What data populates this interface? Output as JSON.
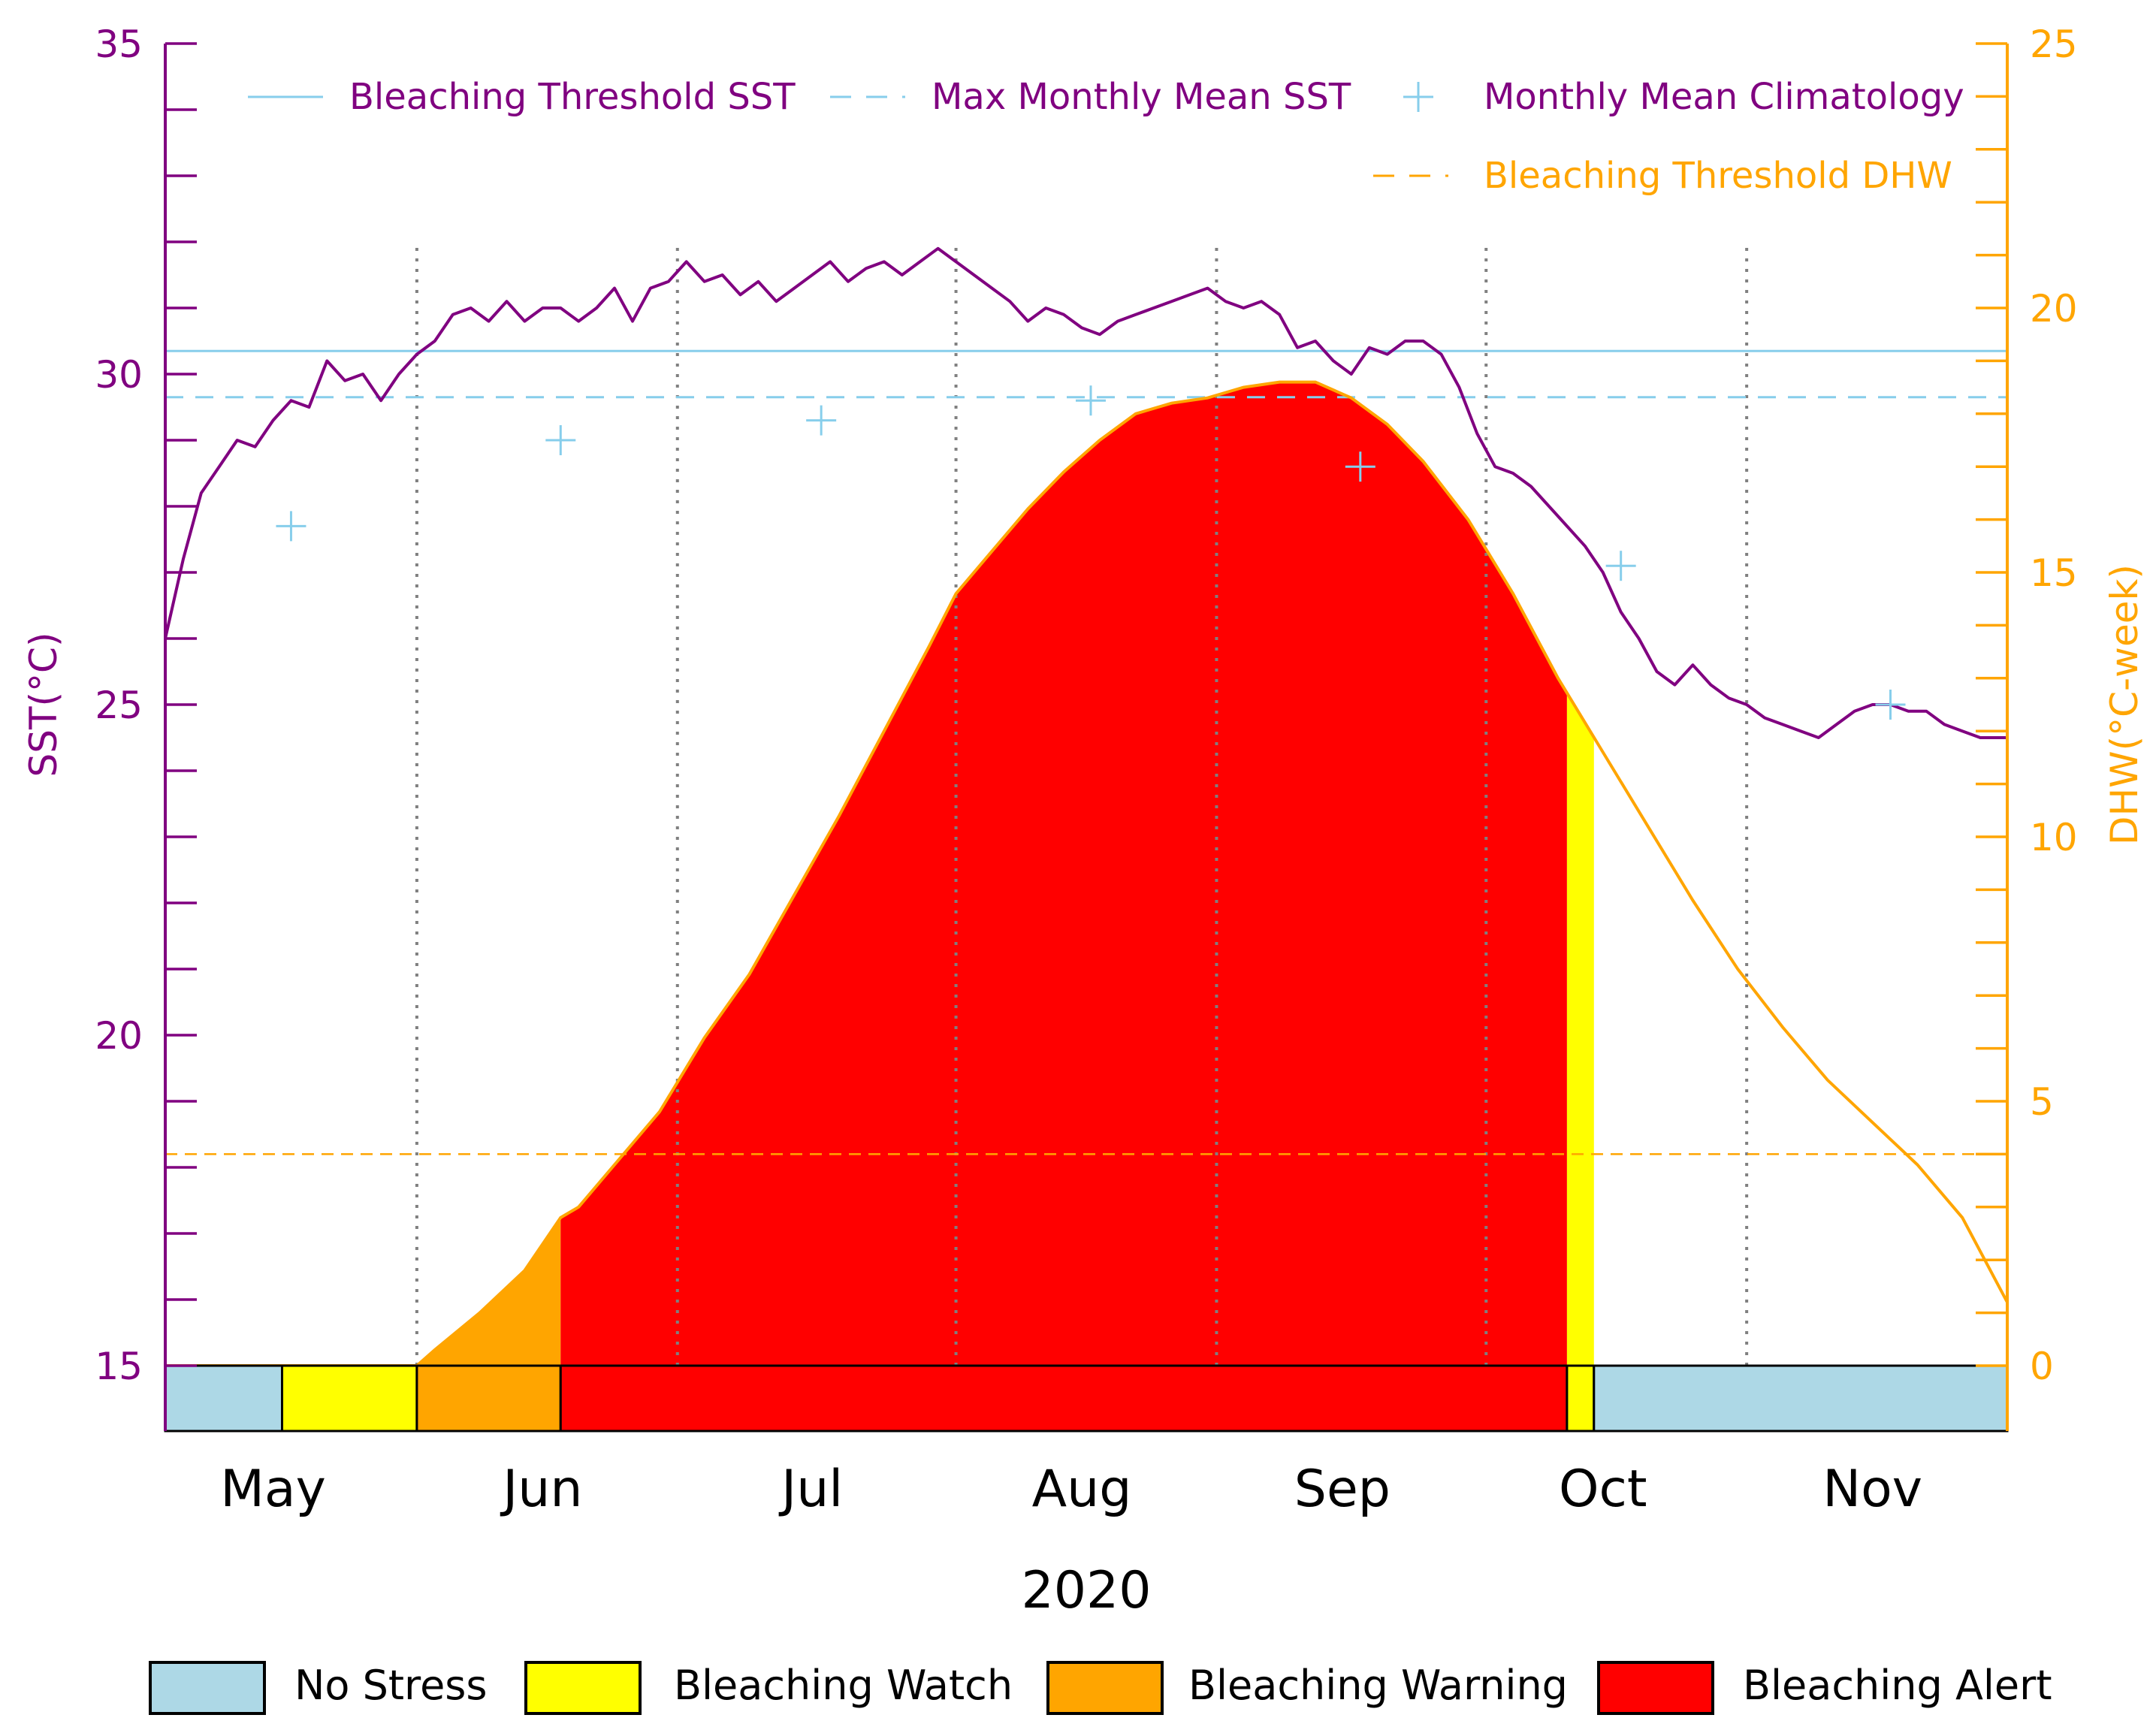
{
  "chart_data": {
    "type": "line",
    "title": "",
    "xlabel": "2020",
    "ylabel_left": "SST(°C)",
    "ylabel_right": "DHW(°C-week)",
    "ylim_left": [
      15,
      35
    ],
    "ylim_right": [
      0,
      25
    ],
    "y_left_ticks": [
      "15",
      "20",
      "25",
      "30",
      "35"
    ],
    "y_right_ticks": [
      "0",
      "5",
      "10",
      "15",
      "20",
      "25"
    ],
    "x_domain_days": [
      0,
      205
    ],
    "month_labels": [
      {
        "label": "May",
        "day": 12
      },
      {
        "label": "Jun",
        "day": 42
      },
      {
        "label": "Jul",
        "day": 72
      },
      {
        "label": "Aug",
        "day": 102
      },
      {
        "label": "Sep",
        "day": 131
      },
      {
        "label": "Oct",
        "day": 160
      },
      {
        "label": "Nov",
        "day": 190
      }
    ],
    "vertical_gridlines_days": [
      28,
      57,
      88,
      117,
      147,
      176,
      206
    ],
    "bleaching_threshold_sst": 30.35,
    "max_monthly_mean_sst": 29.65,
    "bleaching_threshold_dhw": 4.0,
    "sst_series": {
      "name": "SST",
      "points": [
        [
          0,
          26.0
        ],
        [
          2,
          27.2
        ],
        [
          4,
          28.2
        ],
        [
          6,
          28.6
        ],
        [
          8,
          29.0
        ],
        [
          10,
          28.9
        ],
        [
          12,
          29.3
        ],
        [
          14,
          29.6
        ],
        [
          16,
          29.5
        ],
        [
          18,
          30.2
        ],
        [
          20,
          29.9
        ],
        [
          22,
          30.0
        ],
        [
          24,
          29.6
        ],
        [
          26,
          30.0
        ],
        [
          28,
          30.3
        ],
        [
          30,
          30.5
        ],
        [
          32,
          30.9
        ],
        [
          34,
          31.0
        ],
        [
          36,
          30.8
        ],
        [
          38,
          31.1
        ],
        [
          40,
          30.8
        ],
        [
          42,
          31.0
        ],
        [
          44,
          31.0
        ],
        [
          46,
          30.8
        ],
        [
          48,
          31.0
        ],
        [
          50,
          31.3
        ],
        [
          52,
          30.8
        ],
        [
          54,
          31.3
        ],
        [
          56,
          31.4
        ],
        [
          58,
          31.7
        ],
        [
          60,
          31.4
        ],
        [
          62,
          31.5
        ],
        [
          64,
          31.2
        ],
        [
          66,
          31.4
        ],
        [
          68,
          31.1
        ],
        [
          70,
          31.3
        ],
        [
          72,
          31.5
        ],
        [
          74,
          31.7
        ],
        [
          76,
          31.4
        ],
        [
          78,
          31.6
        ],
        [
          80,
          31.7
        ],
        [
          82,
          31.5
        ],
        [
          84,
          31.7
        ],
        [
          86,
          31.9
        ],
        [
          88,
          31.7
        ],
        [
          90,
          31.5
        ],
        [
          92,
          31.3
        ],
        [
          94,
          31.1
        ],
        [
          96,
          30.8
        ],
        [
          98,
          31.0
        ],
        [
          100,
          30.9
        ],
        [
          102,
          30.7
        ],
        [
          104,
          30.6
        ],
        [
          106,
          30.8
        ],
        [
          108,
          30.9
        ],
        [
          110,
          31.0
        ],
        [
          112,
          31.1
        ],
        [
          114,
          31.2
        ],
        [
          116,
          31.3
        ],
        [
          118,
          31.1
        ],
        [
          120,
          31.0
        ],
        [
          122,
          31.1
        ],
        [
          124,
          30.9
        ],
        [
          126,
          30.4
        ],
        [
          128,
          30.5
        ],
        [
          130,
          30.2
        ],
        [
          132,
          30.0
        ],
        [
          134,
          30.4
        ],
        [
          136,
          30.3
        ],
        [
          138,
          30.5
        ],
        [
          140,
          30.5
        ],
        [
          142,
          30.3
        ],
        [
          144,
          29.8
        ],
        [
          146,
          29.1
        ],
        [
          148,
          28.6
        ],
        [
          150,
          28.5
        ],
        [
          152,
          28.3
        ],
        [
          154,
          28.0
        ],
        [
          156,
          27.7
        ],
        [
          158,
          27.4
        ],
        [
          160,
          27.0
        ],
        [
          162,
          26.4
        ],
        [
          164,
          26.0
        ],
        [
          166,
          25.5
        ],
        [
          168,
          25.3
        ],
        [
          170,
          25.6
        ],
        [
          172,
          25.3
        ],
        [
          174,
          25.1
        ],
        [
          176,
          25.0
        ],
        [
          178,
          24.8
        ],
        [
          180,
          24.7
        ],
        [
          182,
          24.6
        ],
        [
          184,
          24.5
        ],
        [
          186,
          24.7
        ],
        [
          188,
          24.9
        ],
        [
          190,
          25.0
        ],
        [
          192,
          25.0
        ],
        [
          194,
          24.9
        ],
        [
          196,
          24.9
        ],
        [
          198,
          24.7
        ],
        [
          200,
          24.6
        ],
        [
          202,
          24.5
        ],
        [
          205,
          24.5
        ]
      ]
    },
    "dhw_series": {
      "name": "DHW",
      "points": [
        [
          0,
          0
        ],
        [
          28,
          0
        ],
        [
          30,
          0.3
        ],
        [
          35,
          1.0
        ],
        [
          40,
          1.8
        ],
        [
          44,
          2.8
        ],
        [
          46,
          3.0
        ],
        [
          50,
          3.8
        ],
        [
          55,
          4.8
        ],
        [
          60,
          6.2
        ],
        [
          65,
          7.4
        ],
        [
          70,
          8.9
        ],
        [
          75,
          10.4
        ],
        [
          80,
          12.0
        ],
        [
          85,
          13.6
        ],
        [
          88,
          14.6
        ],
        [
          92,
          15.4
        ],
        [
          96,
          16.2
        ],
        [
          100,
          16.9
        ],
        [
          104,
          17.5
        ],
        [
          108,
          18.0
        ],
        [
          112,
          18.2
        ],
        [
          116,
          18.3
        ],
        [
          120,
          18.5
        ],
        [
          124,
          18.6
        ],
        [
          128,
          18.6
        ],
        [
          132,
          18.3
        ],
        [
          136,
          17.8
        ],
        [
          140,
          17.1
        ],
        [
          145,
          16.0
        ],
        [
          150,
          14.6
        ],
        [
          155,
          13.0
        ],
        [
          160,
          11.6
        ],
        [
          165,
          10.2
        ],
        [
          170,
          8.8
        ],
        [
          175,
          7.5
        ],
        [
          180,
          6.4
        ],
        [
          185,
          5.4
        ],
        [
          190,
          4.6
        ],
        [
          195,
          3.8
        ],
        [
          200,
          2.8
        ],
        [
          205,
          1.2
        ]
      ]
    },
    "climatology_points": [
      [
        14,
        27.7
      ],
      [
        44,
        29.0
      ],
      [
        73,
        29.3
      ],
      [
        103,
        29.6
      ],
      [
        133,
        28.6
      ],
      [
        162,
        27.1
      ],
      [
        192,
        25.0
      ]
    ],
    "stress_periods": [
      {
        "level": "No Stress",
        "from": 0,
        "to": 13
      },
      {
        "level": "Bleaching Watch",
        "from": 13,
        "to": 28
      },
      {
        "level": "Bleaching Warning",
        "from": 28,
        "to": 44
      },
      {
        "level": "Bleaching Alert",
        "from": 44,
        "to": 156
      },
      {
        "level": "Bleaching Watch",
        "from": 156,
        "to": 159
      },
      {
        "level": "No Stress",
        "from": 159,
        "to": 205
      }
    ],
    "legend_top": [
      {
        "label": "Bleaching Threshold SST",
        "style": "solid",
        "color": "#87ceeb"
      },
      {
        "label": "Max Monthly Mean SST",
        "style": "dashed",
        "color": "#87ceeb"
      },
      {
        "label": "Monthly Mean Climatology",
        "style": "plus",
        "color": "#87ceeb"
      },
      {
        "label": "Bleaching Threshold DHW",
        "style": "dashed",
        "color": "#ffa500"
      }
    ],
    "legend_bottom": [
      {
        "label": "No Stress",
        "color": "#add8e6"
      },
      {
        "label": "Bleaching Watch",
        "color": "#ffff00"
      },
      {
        "label": "Bleaching Warning",
        "color": "#ffa500"
      },
      {
        "label": "Bleaching Alert",
        "color": "#ff0000"
      }
    ],
    "colors": {
      "sst_line": "#800080",
      "dhw_line": "#ffa500",
      "threshold_lines": "#87ceeb",
      "grid": "#808080",
      "left_axis": "#800080",
      "right_axis": "#ffa500"
    }
  }
}
